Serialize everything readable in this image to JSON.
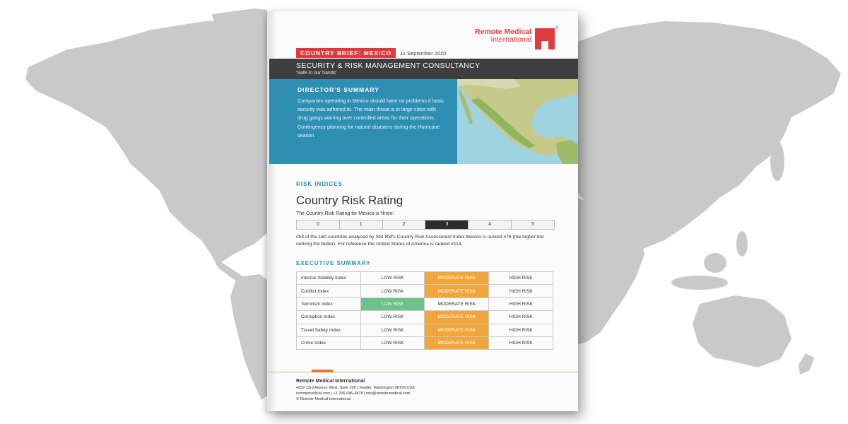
{
  "brochure": {
    "logo": {
      "line1": "Remote Medical",
      "line2": "international",
      "reg": "®"
    },
    "country_tag": "COUNTRY BRIEF: MEXICO",
    "date": "11 September 2020",
    "header_title": "SECURITY & RISK MANAGEMENT CONSULTANCY",
    "header_tagline": "'Safe in our hands'",
    "director": {
      "heading": "DIRECTOR'S SUMMARY",
      "text": "Companies operating in Mexico should have no problems if basic security was adhered to. The main threat is in large cities with drug gangs warring over controlled areas for their operations. Contingency planning for natural disasters during the Hurricane season."
    },
    "risk_indices_label": "RISK INDICES",
    "country_risk_title": "Country Risk Rating",
    "rating_note": "The Country Risk Rating for Mexico is 'three'.",
    "scale": [
      "0",
      "1",
      "2",
      "3",
      "4",
      "5"
    ],
    "scale_selected": 3,
    "ranking_note": "Out of the 160 countries analysed by SSI RM's Country Risk Assessment Index Mexico is ranked #76 (the higher the ranking the better). For reference the United States of America is ranked #114.",
    "exec_summary_label": "EXECUTIVE SUMMARY",
    "levels": [
      "LOW RISK",
      "MODERATE RISK",
      "HIGH RISK"
    ],
    "rows": [
      {
        "index": "Internal Stability Index",
        "level": "MODERATE RISK"
      },
      {
        "index": "Conflict Index",
        "level": "MODERATE RISK"
      },
      {
        "index": "Terrorism Index",
        "level": "LOW RISK"
      },
      {
        "index": "Corruption Index",
        "level": "MODERATE RISK"
      },
      {
        "index": "Travel Safety Index",
        "level": "MODERATE RISK"
      },
      {
        "index": "Crime Index",
        "level": "MODERATE RISK"
      }
    ],
    "footer": {
      "org": "Remote Medical International",
      "address": "4259 23rd Avenue West, Suite 200 | Seattle, Washington 98199 USA",
      "contact": "remotemedical.com | +1 206-686-4878 | info@remotemedical.com",
      "copyright": "© Remote Medical International"
    }
  },
  "colors": {
    "accent_red": "#e03a3e",
    "header_dark": "#3e3e3e",
    "summary_blue": "#2e8fb2",
    "moderate_orange": "#f0a63a",
    "low_green": "#6fc18a",
    "map_grey": "#c9c9c9"
  }
}
